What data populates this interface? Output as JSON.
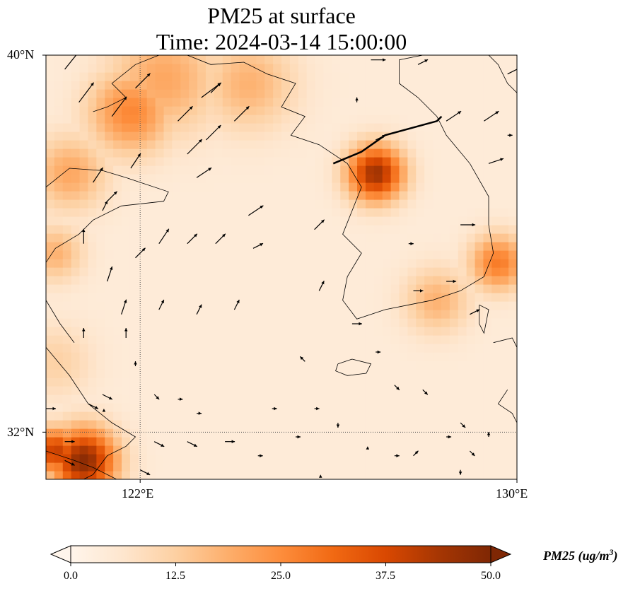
{
  "title": {
    "line1": "PM25 at surface",
    "line2": "Time: 2024-03-14 15:00:00"
  },
  "axes": {
    "lat_labels": [
      "40°N",
      "32°N"
    ],
    "lon_labels": [
      "122°E",
      "130°E"
    ]
  },
  "colorbar": {
    "ticks": [
      "0.0",
      "12.5",
      "25.0",
      "37.5",
      "50.0"
    ],
    "label_prefix": "PM25 (ug/m",
    "label_exp": "3",
    "label_suffix": ")",
    "colors": [
      "#fff5eb",
      "#fee6ce",
      "#fdd0a2",
      "#fdae6b",
      "#fd8d3c",
      "#f16913",
      "#d94801",
      "#a63603",
      "#7f2704"
    ]
  },
  "map_data": {
    "lon_range": [
      120,
      130
    ],
    "lat_range": [
      31,
      40
    ],
    "grid_lon": 122,
    "grid_lat": 32,
    "field_min": 0,
    "field_max": 50,
    "background_value": 4,
    "hotspots": [
      {
        "lon": 120.8,
        "lat": 31.4,
        "value": 48,
        "r": 0.7
      },
      {
        "lon": 120.2,
        "lat": 31.6,
        "value": 40,
        "r": 0.5
      },
      {
        "lon": 121.8,
        "lat": 38.8,
        "value": 26,
        "r": 0.9
      },
      {
        "lon": 122.5,
        "lat": 39.5,
        "value": 20,
        "r": 1.2
      },
      {
        "lon": 124.3,
        "lat": 39.4,
        "value": 18,
        "r": 1.0
      },
      {
        "lon": 120.5,
        "lat": 37.5,
        "value": 20,
        "r": 0.8
      },
      {
        "lon": 120.2,
        "lat": 35.8,
        "value": 18,
        "r": 0.6
      },
      {
        "lon": 127.0,
        "lat": 37.5,
        "value": 45,
        "r": 0.6
      },
      {
        "lon": 129.6,
        "lat": 35.6,
        "value": 28,
        "r": 0.6
      },
      {
        "lon": 128.3,
        "lat": 34.8,
        "value": 18,
        "r": 0.7
      },
      {
        "lon": 120.2,
        "lat": 33.5,
        "value": 12,
        "r": 0.8
      }
    ],
    "wind_vectors": [
      {
        "lon": 120.4,
        "lat": 39.7,
        "u": 4,
        "v": 5
      },
      {
        "lon": 120.7,
        "lat": 39.0,
        "u": 3,
        "v": 4
      },
      {
        "lon": 121.4,
        "lat": 38.7,
        "u": 3,
        "v": 4
      },
      {
        "lon": 121.9,
        "lat": 39.3,
        "u": 3,
        "v": 3
      },
      {
        "lon": 123.3,
        "lat": 39.1,
        "u": 4,
        "v": 3
      },
      {
        "lon": 123.4,
        "lat": 38.2,
        "u": 3,
        "v": 3
      },
      {
        "lon": 124.0,
        "lat": 38.6,
        "u": 3,
        "v": 3
      },
      {
        "lon": 121.8,
        "lat": 37.6,
        "u": 2,
        "v": 3
      },
      {
        "lon": 123.0,
        "lat": 37.9,
        "u": 3,
        "v": 3
      },
      {
        "lon": 123.2,
        "lat": 37.4,
        "u": 3,
        "v": 2
      },
      {
        "lon": 121.0,
        "lat": 37.3,
        "u": 2,
        "v": 3
      },
      {
        "lon": 121.3,
        "lat": 36.9,
        "u": 2,
        "v": 2
      },
      {
        "lon": 122.4,
        "lat": 36.0,
        "u": 2,
        "v": 3
      },
      {
        "lon": 123.0,
        "lat": 36.0,
        "u": 2,
        "v": 2
      },
      {
        "lon": 123.6,
        "lat": 36.0,
        "u": 2,
        "v": 2
      },
      {
        "lon": 124.3,
        "lat": 36.6,
        "u": 3,
        "v": 2
      },
      {
        "lon": 124.4,
        "lat": 35.9,
        "u": 2,
        "v": 1
      },
      {
        "lon": 125.7,
        "lat": 36.3,
        "u": 2,
        "v": 2
      },
      {
        "lon": 121.3,
        "lat": 35.2,
        "u": 1,
        "v": 3
      },
      {
        "lon": 121.6,
        "lat": 34.5,
        "u": 1,
        "v": 3
      },
      {
        "lon": 122.4,
        "lat": 34.6,
        "u": 1,
        "v": 2
      },
      {
        "lon": 123.2,
        "lat": 34.5,
        "u": 1,
        "v": 2
      },
      {
        "lon": 124.0,
        "lat": 34.6,
        "u": 1,
        "v": 2
      },
      {
        "lon": 125.8,
        "lat": 35.0,
        "u": 1,
        "v": 2
      },
      {
        "lon": 120.8,
        "lat": 34.0,
        "u": 0,
        "v": 2
      },
      {
        "lon": 121.7,
        "lat": 34.0,
        "u": 0,
        "v": 2
      },
      {
        "lon": 125.5,
        "lat": 33.5,
        "u": -1,
        "v": 1
      },
      {
        "lon": 126.5,
        "lat": 34.3,
        "u": 2,
        "v": 0
      },
      {
        "lon": 127.8,
        "lat": 35.0,
        "u": 2,
        "v": 0
      },
      {
        "lon": 128.5,
        "lat": 35.2,
        "u": 2,
        "v": 0
      },
      {
        "lon": 129.0,
        "lat": 34.5,
        "u": 2,
        "v": 1
      },
      {
        "lon": 128.8,
        "lat": 36.4,
        "u": 3,
        "v": 0
      },
      {
        "lon": 127.0,
        "lat": 38.2,
        "u": 2,
        "v": 1
      },
      {
        "lon": 128.5,
        "lat": 38.6,
        "u": 3,
        "v": 2
      },
      {
        "lon": 129.3,
        "lat": 38.6,
        "u": 3,
        "v": 2
      },
      {
        "lon": 129.8,
        "lat": 39.6,
        "u": 4,
        "v": 2
      },
      {
        "lon": 127.9,
        "lat": 39.8,
        "u": 2,
        "v": 1
      },
      {
        "lon": 126.9,
        "lat": 39.9,
        "u": 3,
        "v": 0
      },
      {
        "lon": 126.6,
        "lat": 39.0,
        "u": 0,
        "v": 1
      },
      {
        "lon": 129.4,
        "lat": 37.7,
        "u": 3,
        "v": 1
      },
      {
        "lon": 129.8,
        "lat": 38.3,
        "u": 1,
        "v": 0
      },
      {
        "lon": 127.7,
        "lat": 36.0,
        "u": 1,
        "v": 0
      },
      {
        "lon": 127.0,
        "lat": 33.7,
        "u": 1,
        "v": 0
      },
      {
        "lon": 127.4,
        "lat": 33.0,
        "u": 1,
        "v": -1
      },
      {
        "lon": 128.0,
        "lat": 32.9,
        "u": 1,
        "v": -1
      },
      {
        "lon": 128.8,
        "lat": 32.2,
        "u": 1,
        "v": -1
      },
      {
        "lon": 129.0,
        "lat": 31.6,
        "u": 1,
        "v": -1
      },
      {
        "lon": 128.5,
        "lat": 31.9,
        "u": 1,
        "v": 0
      },
      {
        "lon": 121.9,
        "lat": 33.4,
        "u": 0,
        "v": 1
      },
      {
        "lon": 122.3,
        "lat": 32.8,
        "u": 1,
        "v": -1
      },
      {
        "lon": 122.8,
        "lat": 32.7,
        "u": 1,
        "v": 0
      },
      {
        "lon": 123.2,
        "lat": 32.4,
        "u": 1,
        "v": 0
      },
      {
        "lon": 121.2,
        "lat": 32.8,
        "u": 2,
        "v": -1
      },
      {
        "lon": 120.9,
        "lat": 32.6,
        "u": 2,
        "v": -1
      },
      {
        "lon": 120.4,
        "lat": 31.8,
        "u": 2,
        "v": 0
      },
      {
        "lon": 121.2,
        "lat": 32.5,
        "u": 0,
        "v": 0
      },
      {
        "lon": 122.3,
        "lat": 31.8,
        "u": 2,
        "v": -1
      },
      {
        "lon": 123.0,
        "lat": 31.8,
        "u": 2,
        "v": -1
      },
      {
        "lon": 123.8,
        "lat": 31.8,
        "u": 2,
        "v": 0
      },
      {
        "lon": 124.8,
        "lat": 32.5,
        "u": 1,
        "v": 0
      },
      {
        "lon": 125.7,
        "lat": 32.5,
        "u": 1,
        "v": 0
      },
      {
        "lon": 126.2,
        "lat": 32.2,
        "u": 0,
        "v": -1
      },
      {
        "lon": 125.3,
        "lat": 31.9,
        "u": 1,
        "v": 0
      },
      {
        "lon": 124.5,
        "lat": 31.5,
        "u": 1,
        "v": 0
      },
      {
        "lon": 125.8,
        "lat": 31.1,
        "u": 0,
        "v": 0
      },
      {
        "lon": 126.8,
        "lat": 31.7,
        "u": 0,
        "v": 0
      },
      {
        "lon": 127.4,
        "lat": 31.5,
        "u": 1,
        "v": 0
      },
      {
        "lon": 127.8,
        "lat": 31.5,
        "u": 1,
        "v": 1
      },
      {
        "lon": 129.4,
        "lat": 31.9,
        "u": 0,
        "v": 1
      },
      {
        "lon": 128.8,
        "lat": 31.2,
        "u": 0,
        "v": -1
      },
      {
        "lon": 122.0,
        "lat": 31.2,
        "u": 2,
        "v": -1
      },
      {
        "lon": 120.4,
        "lat": 31.4,
        "u": 2,
        "v": -1
      },
      {
        "lon": 120.0,
        "lat": 32.5,
        "u": 2,
        "v": 0
      },
      {
        "lon": 121.9,
        "lat": 35.7,
        "u": 2,
        "v": 2
      },
      {
        "lon": 120.8,
        "lat": 36.0,
        "u": 0,
        "v": 3
      },
      {
        "lon": 122.8,
        "lat": 38.6,
        "u": 3,
        "v": 3
      },
      {
        "lon": 123.5,
        "lat": 39.2,
        "u": 2,
        "v": 2
      },
      {
        "lon": 121.2,
        "lat": 36.7,
        "u": 1,
        "v": 2
      }
    ]
  }
}
